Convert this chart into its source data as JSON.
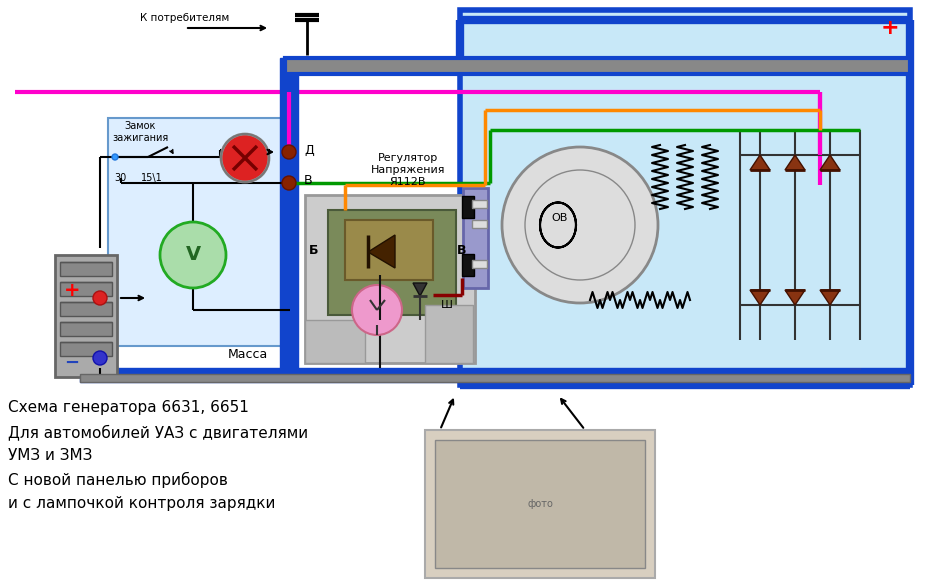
{
  "bg_color": "#ffffff",
  "diagram_bg": "#c8e8f8",
  "blue_bus": "#1144cc",
  "gray_bus": "#999999",
  "title_lines": [
    "Схема генератора 6631, 6651",
    "Для автомобилей УАЗ с двигателями",
    "УМЗ и ЗМЗ",
    "С новой панелью приборов",
    "и с лампочкой контроля зарядки"
  ],
  "wire_pink": "#ff00cc",
  "wire_green": "#009900",
  "wire_orange": "#ff8800",
  "wire_darkred": "#880000",
  "wire_blue": "#1144cc",
  "wire_black": "#111111"
}
